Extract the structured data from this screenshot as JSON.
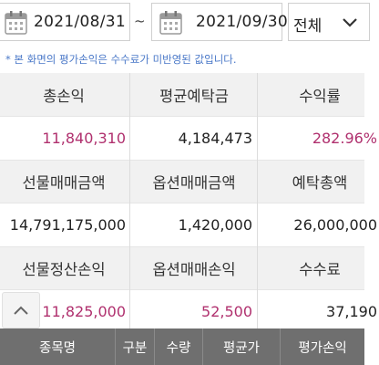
{
  "filter": {
    "start_date": "2021/08/31",
    "separator": "~",
    "end_date": "2021/09/30",
    "category_selected": "전체"
  },
  "notice": "* 본 화면의 평가손익은 수수료가 미반영된 값입니다.",
  "summary": {
    "row1_headers": [
      "총손익",
      "평균예탁금",
      "수익률"
    ],
    "row1_values": [
      "11,840,310",
      "4,184,473",
      "282.96%"
    ],
    "row2_headers": [
      "선물매매금액",
      "옵션매매금액",
      "예탁총액"
    ],
    "row2_values": [
      "14,791,175,000",
      "1,420,000",
      "26,000,000"
    ],
    "row3_headers": [
      "선물정산손익",
      "옵션매매손익",
      "수수료"
    ],
    "row3_values": [
      "11,825,000",
      "52,500",
      "37,190"
    ]
  },
  "table": {
    "columns": [
      "종목명",
      "구분",
      "수량",
      "평균가",
      "평가손익"
    ]
  },
  "colors": {
    "profit_text": "#b0306e",
    "notice_text": "#4a78c8",
    "table_header_bg": "#6f6f6f"
  }
}
